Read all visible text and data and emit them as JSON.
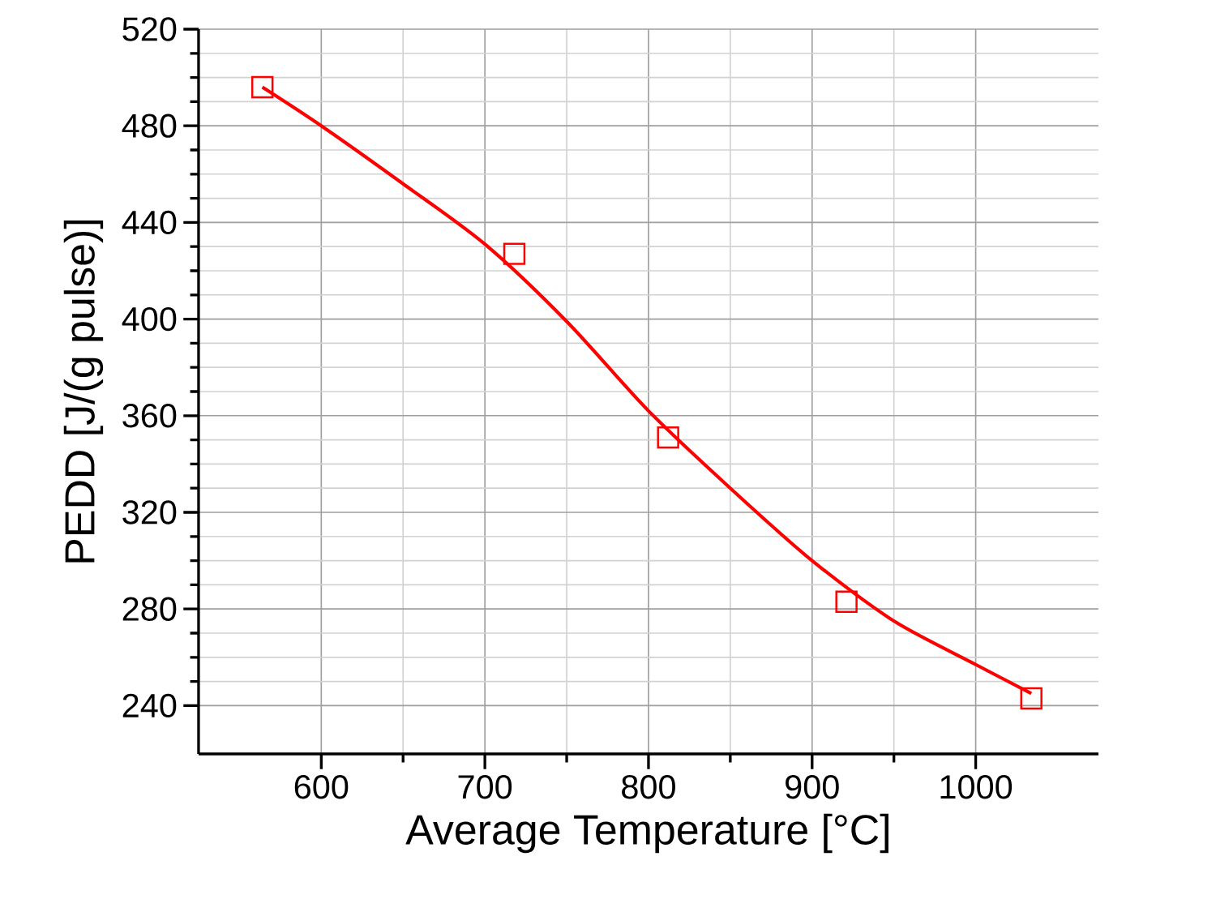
{
  "chart_data": {
    "type": "scatter",
    "xlabel": "Average Temperature [°C]",
    "ylabel": "PEDD [J/(g pulse)]",
    "xlim": [
      525,
      1075
    ],
    "ylim": [
      220,
      520
    ],
    "xticks": [
      600,
      700,
      800,
      900,
      1000
    ],
    "yticks": [
      240,
      280,
      320,
      360,
      400,
      440,
      480,
      520
    ],
    "grid": true,
    "series": [
      {
        "color": "#ff0000",
        "marker": "square",
        "x": [
          564,
          718,
          812,
          921,
          1034
        ],
        "values": [
          496,
          427,
          351,
          283,
          243
        ]
      },
      {
        "type": "line",
        "color": "#ff0000",
        "x": [
          564,
          600,
          650,
          700,
          750,
          800,
          850,
          900,
          950,
          1000,
          1034
        ],
        "values": [
          496,
          480,
          456,
          431,
          399,
          362,
          330,
          300,
          275,
          257,
          245
        ]
      }
    ]
  }
}
